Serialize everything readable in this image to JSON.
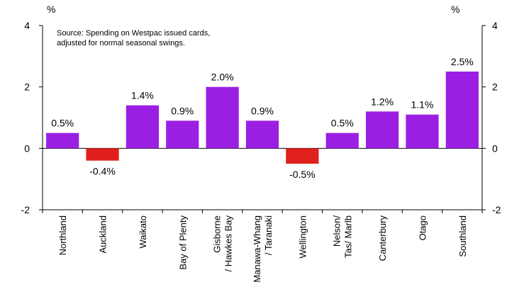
{
  "chart_data": {
    "type": "bar",
    "y_label_left": "%",
    "y_label_right": "%",
    "annotation": [
      "Source: Spending on Westpac issued cards,",
      "adjusted for normal seasonal swings."
    ],
    "categories": [
      [
        "Northland"
      ],
      [
        "Auckland"
      ],
      [
        "Waikato"
      ],
      [
        "Bay of Plenty"
      ],
      [
        "Gisborne",
        "/ Hawkes Bay"
      ],
      [
        "Manawa-Whang",
        "/ Taranaki"
      ],
      [
        "Wellington"
      ],
      [
        "Nelson/",
        "Tas/ Marlb"
      ],
      [
        "Canterbury"
      ],
      [
        "Otago"
      ],
      [
        "Southland"
      ]
    ],
    "values": [
      0.5,
      -0.4,
      1.4,
      0.9,
      2.0,
      0.9,
      -0.5,
      0.5,
      1.2,
      1.1,
      2.5
    ],
    "value_labels": [
      "0.5%",
      "-0.4%",
      "1.4%",
      "0.9%",
      "2.0%",
      "0.9%",
      "-0.5%",
      "0.5%",
      "1.2%",
      "1.1%",
      "2.5%"
    ],
    "colors": [
      "#9b1fe3",
      "#e0201c",
      "#9b1fe3",
      "#9b1fe3",
      "#9b1fe3",
      "#9b1fe3",
      "#e0201c",
      "#9b1fe3",
      "#9b1fe3",
      "#9b1fe3",
      "#9b1fe3"
    ],
    "ylim": [
      -2,
      4
    ],
    "yticks": [
      -2,
      0,
      2,
      4
    ],
    "y2lim": [
      -2,
      4
    ],
    "y2ticks": [
      -2,
      0,
      2,
      4
    ]
  }
}
